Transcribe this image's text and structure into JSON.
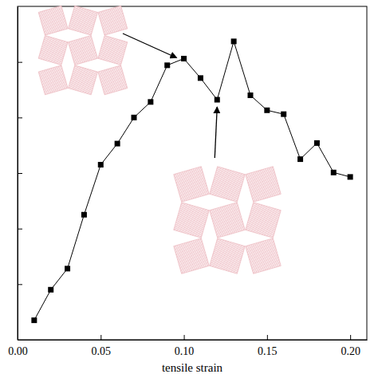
{
  "chart_data": {
    "type": "line",
    "x_label": "tensile strain",
    "x": [
      0.01,
      0.02,
      0.03,
      0.04,
      0.05,
      0.06,
      0.07,
      0.08,
      0.09,
      0.1,
      0.11,
      0.12,
      0.13,
      0.14,
      0.15,
      0.16,
      0.17,
      0.18,
      0.19,
      0.2
    ],
    "series": [
      {
        "color": "#000000",
        "marker": "square",
        "line_style": "solid",
        "values": [
          0.35,
          0.9,
          1.28,
          2.25,
          3.15,
          3.53,
          4.0,
          4.28,
          4.94,
          5.06,
          4.71,
          4.32,
          5.37,
          4.4,
          4.13,
          4.06,
          3.25,
          3.54,
          3.01,
          2.93
        ]
      }
    ],
    "xlim": [
      0,
      0.21
    ],
    "xticks": [
      {
        "value": 0,
        "label": "0.00"
      },
      {
        "value": 0.05,
        "label": "0.05"
      },
      {
        "value": 0.1,
        "label": "0.10"
      },
      {
        "value": 0.15,
        "label": "0.15"
      },
      {
        "value": 0.2,
        "label": "0.20"
      }
    ],
    "ylim": [
      0,
      6
    ],
    "yticks": [
      1,
      2,
      3,
      4,
      5
    ],
    "tick_labels": "x"
  }
}
